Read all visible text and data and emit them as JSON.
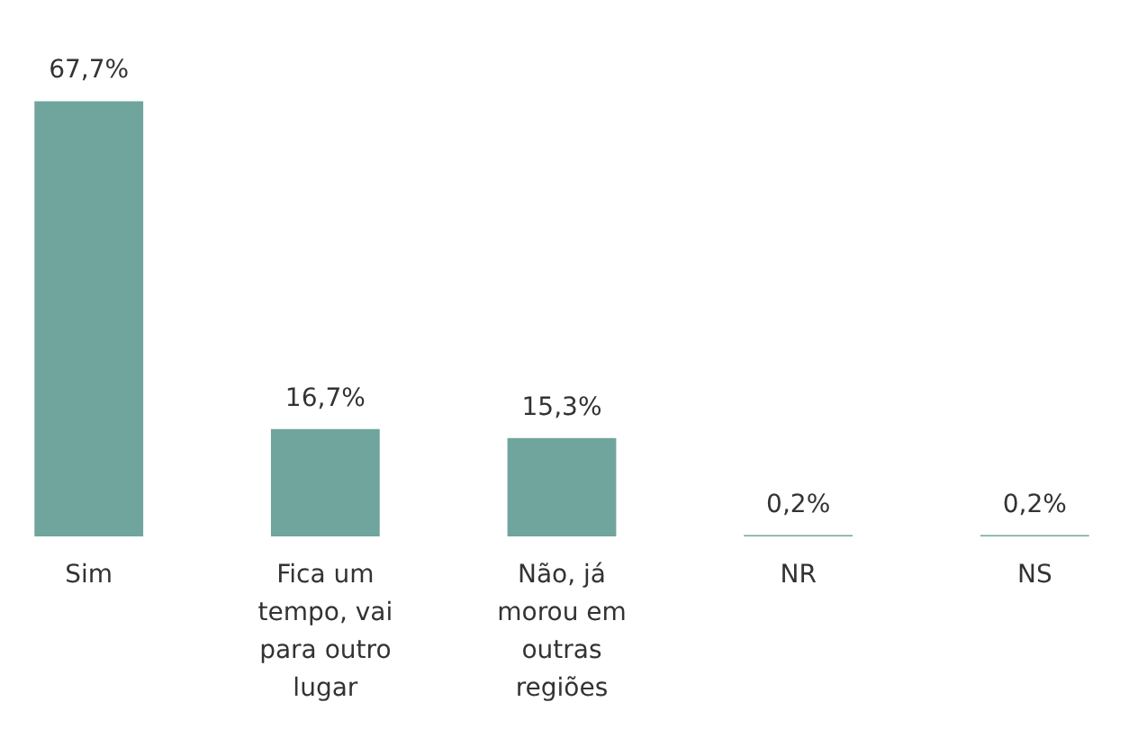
{
  "chart_data": {
    "type": "bar",
    "categories": [
      "Sim",
      "Fica um tempo, vai para outro lugar",
      "Não, já morou em outras regiões",
      "NR",
      "NS"
    ],
    "values": [
      67.7,
      16.7,
      15.3,
      0.2,
      0.2
    ],
    "value_labels": [
      "67,7%",
      "16,7%",
      "15,3%",
      "0,2%",
      "0,2%"
    ],
    "color": "#6fa59c"
  }
}
